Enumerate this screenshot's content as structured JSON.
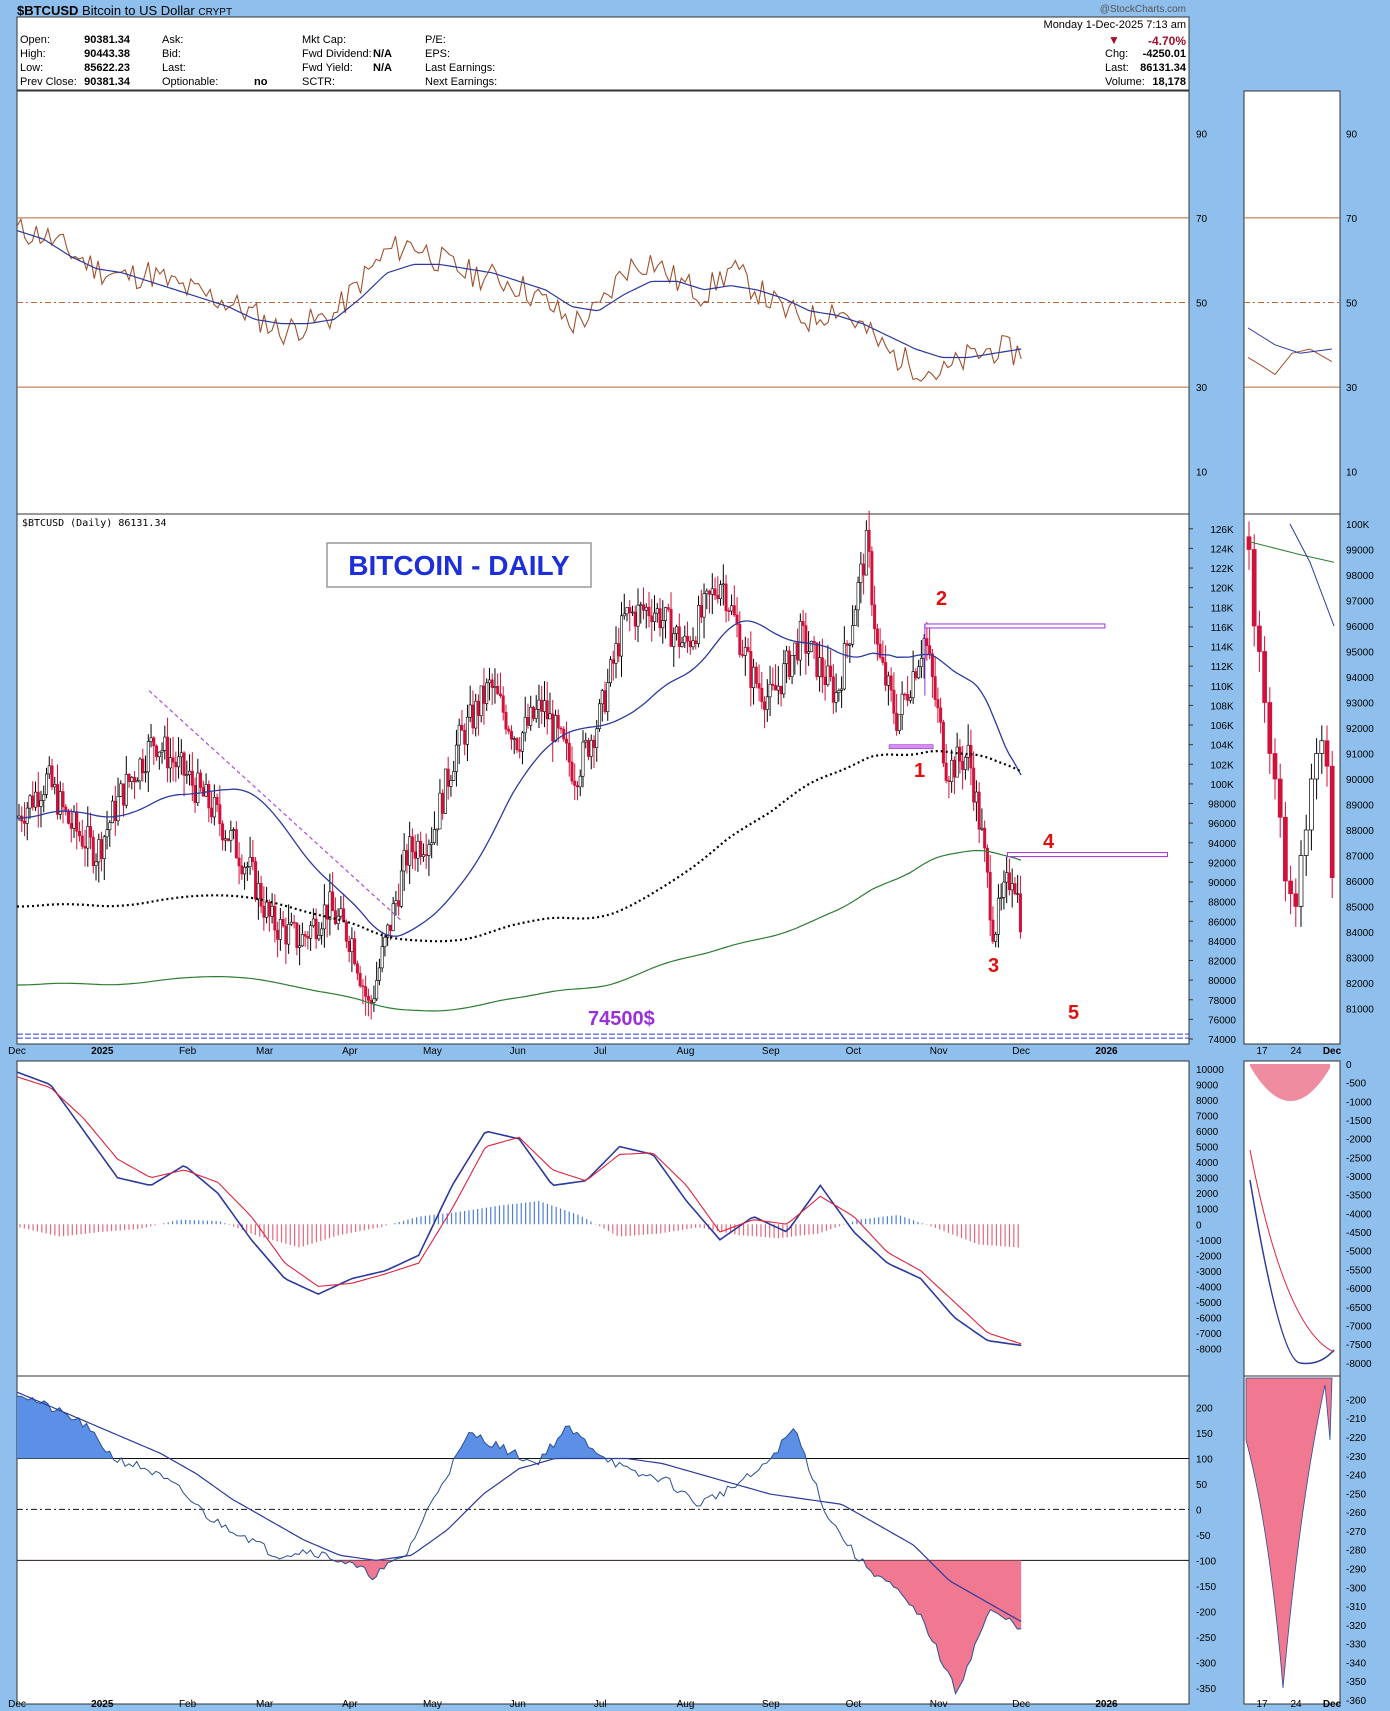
{
  "header": {
    "symbol": "$BTCUSD",
    "name": "Bitcoin to US Dollar",
    "exchange": "CRYPT",
    "brand": "@StockCharts.com",
    "date_line": "Monday 1-Dec-2025 7:13 am",
    "quote": {
      "open_label": "Open:",
      "open": "90381.34",
      "high_label": "High:",
      "high": "90443.38",
      "low_label": "Low:",
      "low": "85622.23",
      "prev_label": "Prev Close:",
      "prev": "90381.34",
      "ask_label": "Ask:",
      "bid_label": "Bid:",
      "last_label": "Last:",
      "optionable_label": "Optionable:",
      "optionable": "no",
      "mktcap_label": "Mkt Cap:",
      "fwd_div_label": "Fwd Dividend:",
      "fwd_div": "N/A",
      "fwd_yield_label": "Fwd Yield:",
      "fwd_yield": "N/A",
      "sctr_label": "SCTR:",
      "pe_label": "P/E:",
      "eps_label": "EPS:",
      "last_earn_label": "Last Earnings:",
      "next_earn_label": "Next Earnings:",
      "pct": "-4.70%",
      "chg_label": "Chg:",
      "chg": "-4250.01",
      "last2_label": "Last:",
      "last2": "86131.34",
      "vol_label": "Volume:",
      "vol": "18,178"
    }
  },
  "colors": {
    "background": "#8fbfec",
    "panel": "#ffffff",
    "up_candle": "#000000",
    "down_candle": "#d0113a",
    "rsi_line": "#a0522d",
    "ma_blue": "#2b3a9c",
    "ma200": "#000000",
    "ma_green": "#2e7d32",
    "annot_red": "#e01010",
    "purple": "#9b30d9",
    "hist_blue": "#4a7fd9",
    "hist_red": "#e3687e"
  },
  "annotations": {
    "title": "BITCOIN - DAILY",
    "price_level": "74500$",
    "wave_labels": [
      "1",
      "2",
      "3",
      "4",
      "5"
    ],
    "price_panel_label": "$BTCUSD (Daily) 86131.34"
  },
  "x_axis": {
    "main_months": [
      "Dec",
      "2025",
      "Feb",
      "Mar",
      "Apr",
      "May",
      "Jun",
      "Jul",
      "Aug",
      "Sep",
      "Oct",
      "Nov",
      "Dec",
      "2026"
    ],
    "zoom_months": [
      "17",
      "24",
      "Dec"
    ]
  },
  "chart_data": [
    {
      "type": "line",
      "name": "rsi_panel",
      "x_range": [
        "2024-12-01",
        "2026-01-31"
      ],
      "ylim": [
        0,
        100
      ],
      "y_ticks": [
        "10",
        "30",
        "50",
        "70",
        "90"
      ],
      "reference_lines": [
        30,
        50,
        70
      ],
      "series": [
        {
          "values": [
            67,
            66,
            62,
            58,
            56,
            57,
            54,
            52,
            50,
            47,
            43,
            45,
            47,
            55,
            62,
            64,
            60,
            57,
            56,
            54,
            50,
            45,
            48,
            58,
            60,
            55,
            52,
            58,
            53,
            48,
            46,
            49,
            44,
            38,
            35,
            33,
            37,
            39,
            38
          ]
        },
        {
          "values": [
            67,
            65,
            61,
            58,
            57,
            55,
            53,
            51,
            49,
            46,
            45,
            45,
            46,
            51,
            57,
            59,
            59,
            58,
            57,
            55,
            53,
            49,
            48,
            52,
            55,
            55,
            53,
            54,
            53,
            51,
            48,
            47,
            45,
            42,
            39,
            37,
            37,
            38,
            39
          ]
        }
      ]
    },
    {
      "type": "candlestick",
      "name": "price_panel",
      "x_range": [
        "2024-12-01",
        "2026-01-31"
      ],
      "ylim": [
        74000,
        127000
      ],
      "y_ticks": [
        "74000",
        "76000",
        "78000",
        "80000",
        "82000",
        "84000",
        "86000",
        "88000",
        "90000",
        "92000",
        "94000",
        "96000",
        "98000",
        "100K",
        "102K",
        "104K",
        "106K",
        "108K",
        "110K",
        "112K",
        "114K",
        "116K",
        "118K",
        "120K",
        "122K",
        "124K",
        "126K"
      ],
      "close_path": [
        [
          "2024-12-01",
          96500
        ],
        [
          "2024-12-12",
          100500
        ],
        [
          "2024-12-20",
          96000
        ],
        [
          "2024-12-30",
          93000
        ],
        [
          "2025-01-08",
          99000
        ],
        [
          "2025-01-20",
          104500
        ],
        [
          "2025-01-31",
          101000
        ],
        [
          "2025-02-10",
          97500
        ],
        [
          "2025-02-24",
          91000
        ],
        [
          "2025-03-03",
          86000
        ],
        [
          "2025-03-14",
          84000
        ],
        [
          "2025-03-24",
          87500
        ],
        [
          "2025-04-02",
          84000
        ],
        [
          "2025-04-08",
          77000
        ],
        [
          "2025-04-15",
          85000
        ],
        [
          "2025-04-22",
          93000
        ],
        [
          "2025-05-01",
          95000
        ],
        [
          "2025-05-10",
          104000
        ],
        [
          "2025-05-22",
          110000
        ],
        [
          "2025-06-01",
          104500
        ],
        [
          "2025-06-10",
          108000
        ],
        [
          "2025-06-22",
          101000
        ],
        [
          "2025-07-01",
          107000
        ],
        [
          "2025-07-10",
          117000
        ],
        [
          "2025-07-20",
          118000
        ],
        [
          "2025-08-01",
          114000
        ],
        [
          "2025-08-14",
          121000
        ],
        [
          "2025-08-25",
          111000
        ],
        [
          "2025-09-01",
          108500
        ],
        [
          "2025-09-12",
          115000
        ],
        [
          "2025-09-25",
          109000
        ],
        [
          "2025-10-06",
          124500
        ],
        [
          "2025-10-10",
          113000
        ],
        [
          "2025-10-17",
          106500
        ],
        [
          "2025-10-27",
          115000
        ],
        [
          "2025-11-04",
          101500
        ],
        [
          "2025-11-12",
          103000
        ],
        [
          "2025-11-17",
          94000
        ],
        [
          "2025-11-21",
          85000
        ],
        [
          "2025-11-28",
          91500
        ],
        [
          "2025-12-01",
          86131
        ]
      ],
      "overlays": [
        {
          "kind": "ma_50",
          "color": "#2b3a9c"
        },
        {
          "kind": "ma_150_dotted",
          "color": "#000000"
        },
        {
          "kind": "ma_200",
          "color": "#2e7d32"
        }
      ],
      "horizontal_levels": [
        74500,
        103800,
        116000,
        92800
      ]
    },
    {
      "type": "line",
      "name": "macd_panel",
      "ylim": [
        -9000,
        10000
      ],
      "y_ticks": [
        "-8000",
        "-7000",
        "-6000",
        "-5000",
        "-4000",
        "-3000",
        "-2000",
        "-1000",
        "0",
        "1000",
        "2000",
        "3000",
        "4000",
        "5000",
        "6000",
        "7000",
        "8000",
        "9000",
        "10000"
      ],
      "series": [
        {
          "name": "MACD",
          "values": [
            9800,
            9000,
            6000,
            3000,
            2500,
            3800,
            2000,
            -1000,
            -3500,
            -4500,
            -3500,
            -3000,
            -2000,
            2500,
            6000,
            5500,
            2500,
            2800,
            5000,
            4500,
            1500,
            -1000,
            500,
            -500,
            2500,
            -500,
            -2500,
            -3500,
            -6000,
            -7500,
            -7800
          ]
        },
        {
          "name": "Signal",
          "values": [
            9500,
            8800,
            6800,
            4200,
            3000,
            3500,
            2700,
            500,
            -2500,
            -4000,
            -3800,
            -3200,
            -2500,
            1000,
            5000,
            5600,
            3500,
            2800,
            4500,
            4600,
            2500,
            -500,
            300,
            0,
            1800,
            500,
            -1800,
            -3000,
            -5000,
            -7000,
            -7700
          ]
        },
        {
          "name": "Histogram",
          "values": [
            -200,
            -800,
            -500,
            -300,
            300,
            200,
            -800,
            -1500,
            -700,
            -200,
            500,
            800,
            1200,
            1500,
            600,
            -800,
            -600,
            -200,
            -700,
            -900,
            -600,
            300,
            600,
            -300,
            -1300,
            -1500
          ]
        }
      ]
    },
    {
      "type": "area",
      "name": "cci_panel",
      "ylim": [
        -370,
        250
      ],
      "y_ticks": [
        "-350",
        "-300",
        "-250",
        "-200",
        "-150",
        "-100",
        "-50",
        "0",
        "50",
        "100",
        "150",
        "200"
      ],
      "reference_lines": [
        -100,
        0,
        100
      ],
      "series": [
        {
          "name": "CCI",
          "values": [
            230,
            200,
            170,
            100,
            80,
            40,
            -20,
            -50,
            -90,
            -80,
            -100,
            -130,
            -90,
            40,
            150,
            120,
            90,
            160,
            110,
            70,
            60,
            10,
            40,
            80,
            160,
            -10,
            -100,
            -150,
            -220,
            -360,
            -200,
            -230
          ]
        },
        {
          "name": "CCI MA",
          "values": [
            230,
            200,
            170,
            140,
            110,
            70,
            20,
            -20,
            -60,
            -90,
            -100,
            -90,
            -40,
            30,
            80,
            100,
            100,
            100,
            90,
            70,
            50,
            30,
            20,
            10,
            -30,
            -70,
            -140,
            -180,
            -220
          ]
        }
      ]
    },
    {
      "type": "candlestick",
      "name": "zoom_price_panel",
      "x_ticks": [
        "17",
        "24",
        "Dec"
      ],
      "ylim": [
        80000,
        100000
      ],
      "y_ticks": [
        "81000",
        "82000",
        "83000",
        "84000",
        "85000",
        "86000",
        "87000",
        "88000",
        "89000",
        "90000",
        "91000",
        "92000",
        "93000",
        "94000",
        "95000",
        "96000",
        "97000",
        "98000",
        "99000",
        "100K"
      ]
    }
  ]
}
